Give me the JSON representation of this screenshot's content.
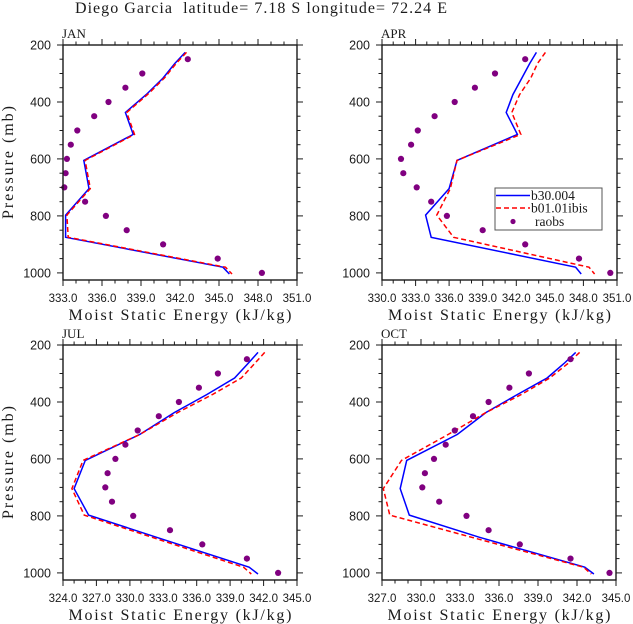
{
  "title": "Diego Garcia  latitude= 7.18 S longitude= 72.24 E",
  "chart_data": [
    {
      "id": "jan",
      "type": "line",
      "title": "JAN",
      "xlabel": "Moist Static Energy (kJ/kg)",
      "ylabel": "Pressure (mb)",
      "xlim": [
        333,
        351
      ],
      "ylim": [
        200,
        1025
      ],
      "y_inverted": true,
      "grid": false,
      "xticks": [
        333,
        336,
        339,
        342,
        345,
        348,
        351
      ],
      "xtick_labels": [
        "333.0",
        "336.0",
        "339.0",
        "342.0",
        "345.0",
        "348.0",
        "351.0"
      ],
      "yticks": [
        200,
        400,
        600,
        800,
        1000
      ],
      "ytick_labels": [
        "200",
        "400",
        "600",
        "800",
        "1000"
      ],
      "x_minor_step": 1,
      "y_minor_step": 50,
      "legend": {
        "show": false
      },
      "series": [
        {
          "name": "b30.004",
          "style": "solid",
          "color": "#0000FF",
          "y": [
            226,
            265,
            316,
            374,
            437,
            514,
            605,
            704,
            797,
            875,
            980,
            1004
          ],
          "x": [
            342.4,
            341.6,
            340.7,
            339.4,
            337.8,
            338.4,
            334.6,
            335.0,
            333.2,
            333.2,
            345.3,
            345.8
          ]
        },
        {
          "name": "b01.01ibis",
          "style": "dashed",
          "color": "#FF0000",
          "y": [
            226,
            265,
            316,
            374,
            437,
            514,
            605,
            704,
            797,
            875,
            980,
            1004
          ],
          "x": [
            342.5,
            341.7,
            340.8,
            339.5,
            337.9,
            338.5,
            334.7,
            335.1,
            333.3,
            333.4,
            345.5,
            346.0
          ]
        },
        {
          "name": "raobs",
          "style": "markers",
          "color": "#800080",
          "y": [
            250,
            300,
            350,
            400,
            450,
            500,
            550,
            600,
            650,
            700,
            750,
            800,
            850,
            900,
            950,
            1000
          ],
          "x": [
            342.6,
            339.1,
            337.8,
            336.5,
            335.4,
            334.1,
            333.6,
            333.3,
            333.2,
            333.1,
            334.7,
            336.3,
            337.9,
            340.7,
            344.9,
            348.3
          ]
        }
      ]
    },
    {
      "id": "apr",
      "type": "line",
      "title": "APR",
      "xlabel": "Moist Static Energy (kJ/kg)",
      "ylabel": "",
      "xlim": [
        330,
        351
      ],
      "ylim": [
        200,
        1025
      ],
      "y_inverted": true,
      "grid": false,
      "xticks": [
        330,
        333,
        336,
        339,
        342,
        345,
        348,
        351
      ],
      "xtick_labels": [
        "330.0",
        "333.0",
        "336.0",
        "339.0",
        "342.0",
        "345.0",
        "348.0",
        "351.0"
      ],
      "yticks": [
        200,
        400,
        600,
        800,
        1000
      ],
      "ytick_labels": [
        "200",
        "400",
        "600",
        "800",
        "1000"
      ],
      "x_minor_step": 1,
      "y_minor_step": 50,
      "legend": {
        "show": true,
        "position": "right",
        "entries": [
          "b30.004",
          "b01.01ibis",
          "raobs"
        ]
      },
      "series": [
        {
          "name": "b30.004",
          "style": "solid",
          "color": "#0000FF",
          "y": [
            226,
            265,
            316,
            374,
            437,
            514,
            605,
            704,
            797,
            875,
            980,
            1004
          ],
          "x": [
            343.8,
            343.2,
            342.5,
            341.7,
            341.1,
            342.1,
            336.7,
            336.0,
            333.9,
            334.4,
            347.3,
            347.8
          ]
        },
        {
          "name": "b01.01ibis",
          "style": "dashed",
          "color": "#FF0000",
          "y": [
            226,
            265,
            316,
            374,
            437,
            514,
            605,
            704,
            797,
            875,
            980,
            1004
          ],
          "x": [
            344.6,
            343.9,
            343.3,
            342.3,
            341.6,
            342.4,
            336.7,
            336.1,
            334.9,
            336.4,
            348.5,
            349.0
          ]
        },
        {
          "name": "raobs",
          "style": "markers",
          "color": "#800080",
          "y": [
            250,
            300,
            350,
            400,
            450,
            500,
            550,
            600,
            650,
            700,
            750,
            800,
            850,
            900,
            950,
            1000
          ],
          "x": [
            342.8,
            340.1,
            338.3,
            336.5,
            334.7,
            333.2,
            332.6,
            331.7,
            331.9,
            333.1,
            334.4,
            335.8,
            339.0,
            342.8,
            347.6,
            350.4
          ]
        }
      ]
    },
    {
      "id": "jul",
      "type": "line",
      "title": "JUL",
      "xlabel": "Moist Static Energy (kJ/kg)",
      "ylabel": "Pressure (mb)",
      "xlim": [
        324,
        345
      ],
      "ylim": [
        200,
        1025
      ],
      "y_inverted": true,
      "grid": false,
      "xticks": [
        324,
        327,
        330,
        333,
        336,
        339,
        342,
        345
      ],
      "xtick_labels": [
        "324.0",
        "327.0",
        "330.0",
        "333.0",
        "336.0",
        "339.0",
        "342.0",
        "345.0"
      ],
      "yticks": [
        200,
        400,
        600,
        800,
        1000
      ],
      "ytick_labels": [
        "200",
        "400",
        "600",
        "800",
        "1000"
      ],
      "x_minor_step": 1,
      "y_minor_step": 50,
      "legend": {
        "show": false
      },
      "series": [
        {
          "name": "b30.004",
          "style": "solid",
          "color": "#0000FF",
          "y": [
            226,
            265,
            316,
            374,
            437,
            514,
            605,
            704,
            797,
            875,
            980,
            1004
          ],
          "x": [
            341.5,
            340.6,
            339.4,
            336.9,
            334.0,
            330.9,
            326.0,
            325.0,
            326.3,
            332.4,
            340.7,
            341.5
          ]
        },
        {
          "name": "b01.01ibis",
          "style": "dashed",
          "color": "#FF0000",
          "y": [
            226,
            265,
            316,
            374,
            437,
            514,
            605,
            704,
            797,
            875,
            980,
            1004
          ],
          "x": [
            342.1,
            341.2,
            340.0,
            337.4,
            334.3,
            330.9,
            325.8,
            324.8,
            325.9,
            332.0,
            340.2,
            340.9
          ]
        },
        {
          "name": "raobs",
          "style": "markers",
          "color": "#800080",
          "y": [
            250,
            300,
            350,
            400,
            450,
            500,
            550,
            600,
            650,
            700,
            750,
            800,
            850,
            900,
            950,
            1000
          ],
          "x": [
            340.5,
            337.9,
            336.2,
            334.4,
            332.6,
            330.7,
            329.6,
            328.7,
            328.0,
            327.8,
            328.4,
            330.3,
            333.6,
            336.5,
            340.5,
            343.3
          ]
        }
      ]
    },
    {
      "id": "oct",
      "type": "line",
      "title": "OCT",
      "xlabel": "Moist Static Energy (kJ/kg)",
      "ylabel": "",
      "xlim": [
        327,
        345
      ],
      "ylim": [
        200,
        1025
      ],
      "y_inverted": true,
      "grid": false,
      "xticks": [
        327,
        330,
        333,
        336,
        339,
        342,
        345
      ],
      "xtick_labels": [
        "327.0",
        "330.0",
        "333.0",
        "336.0",
        "339.0",
        "342.0",
        "345.0"
      ],
      "yticks": [
        200,
        400,
        600,
        800,
        1000
      ],
      "ytick_labels": [
        "200",
        "400",
        "600",
        "800",
        "1000"
      ],
      "x_minor_step": 1,
      "y_minor_step": 50,
      "legend": {
        "show": false
      },
      "series": [
        {
          "name": "b30.004",
          "style": "solid",
          "color": "#0000FF",
          "y": [
            226,
            265,
            316,
            374,
            437,
            514,
            605,
            704,
            797,
            875,
            980,
            1004
          ],
          "x": [
            341.9,
            341.0,
            339.7,
            337.4,
            335.0,
            332.8,
            328.9,
            328.4,
            329.1,
            334.5,
            342.6,
            343.3
          ]
        },
        {
          "name": "b01.01ibis",
          "style": "dashed",
          "color": "#FF0000",
          "y": [
            226,
            265,
            316,
            374,
            437,
            514,
            605,
            704,
            797,
            875,
            980,
            1004
          ],
          "x": [
            342.2,
            341.3,
            339.9,
            337.7,
            335.0,
            332.1,
            328.5,
            327.1,
            327.6,
            333.9,
            342.5,
            343.1
          ]
        },
        {
          "name": "raobs",
          "style": "markers",
          "color": "#800080",
          "y": [
            250,
            300,
            350,
            400,
            450,
            500,
            550,
            600,
            650,
            700,
            750,
            800,
            850,
            900,
            950,
            1000
          ],
          "x": [
            341.5,
            338.3,
            336.8,
            335.2,
            334.0,
            332.6,
            331.9,
            331.0,
            330.3,
            330.1,
            331.4,
            333.5,
            335.2,
            337.6,
            341.5,
            344.5
          ]
        }
      ]
    }
  ]
}
